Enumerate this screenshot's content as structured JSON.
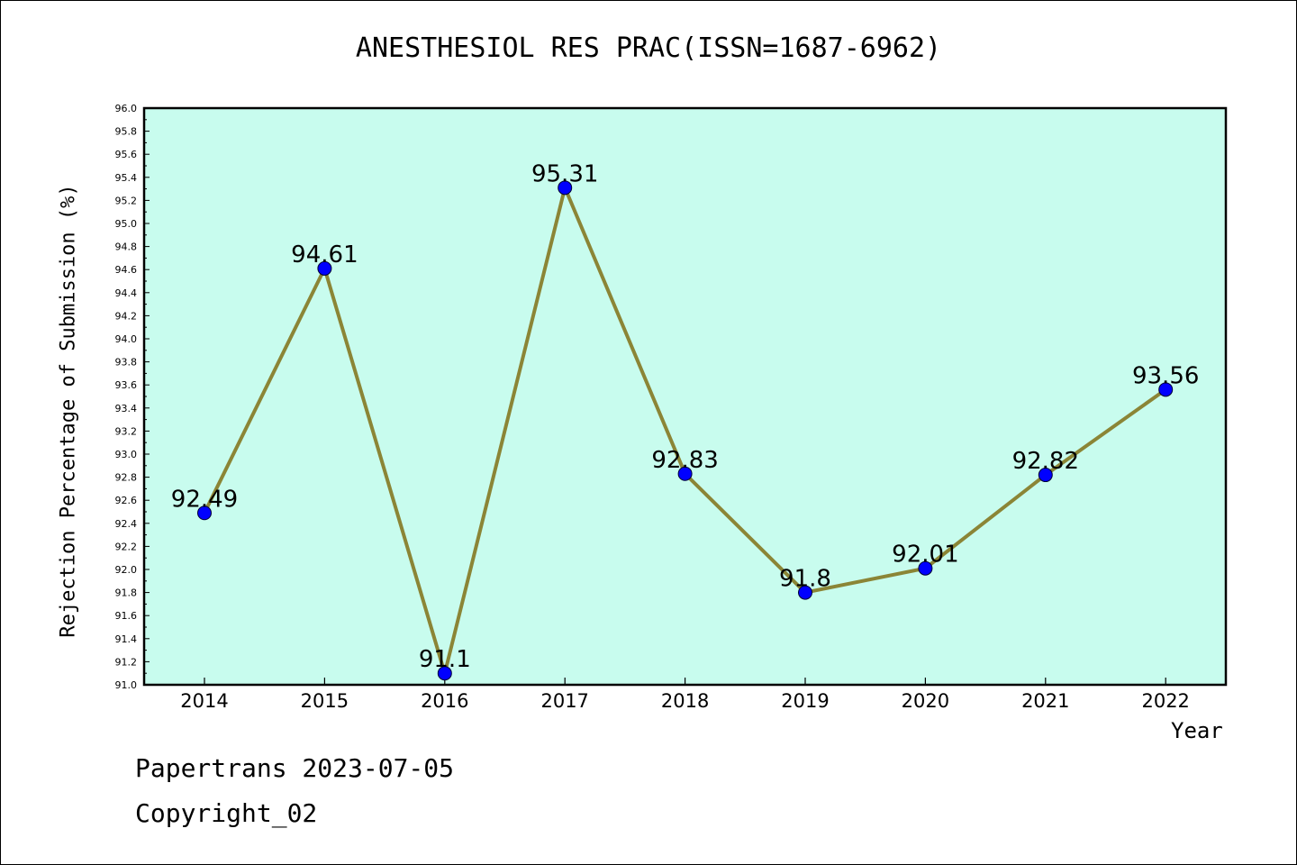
{
  "chart_data": {
    "type": "line",
    "title": "ANESTHESIOL RES PRAC(ISSN=1687-6962)",
    "xlabel": "Year",
    "ylabel": "Rejection Percentage of Submission (%)",
    "categories": [
      "2014",
      "2015",
      "2016",
      "2017",
      "2018",
      "2019",
      "2020",
      "2021",
      "2022"
    ],
    "values": [
      92.49,
      94.61,
      91.1,
      95.31,
      92.83,
      91.8,
      92.01,
      92.82,
      93.56
    ],
    "data_labels": [
      "92.49",
      "94.61",
      "91.1",
      "95.31",
      "92.83",
      "91.8",
      "92.01",
      "92.82",
      "93.56"
    ],
    "ylim": [
      91.0,
      96.0
    ],
    "y_ticks": [
      "91.0",
      "91.2",
      "91.4",
      "91.6",
      "91.8",
      "92.0",
      "92.2",
      "92.4",
      "92.6",
      "92.8",
      "93.0",
      "93.2",
      "93.4",
      "93.6",
      "93.8",
      "94.0",
      "94.2",
      "94.4",
      "94.6",
      "94.8",
      "95.0",
      "95.2",
      "95.4",
      "95.6",
      "95.8",
      "96.0"
    ],
    "grid": false,
    "colors": {
      "plot_bg": "#c8fcee",
      "line": "#8b8536",
      "marker": "#0000ff"
    }
  },
  "footer": {
    "line1": "Papertrans 2023-07-05",
    "line2": "Copyright_02"
  }
}
